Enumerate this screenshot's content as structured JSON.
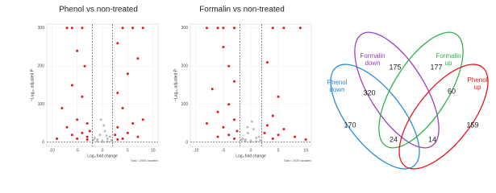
{
  "chart_data": [
    {
      "type": "scatter",
      "title": "Phenol vs non-treated",
      "xlabel": "Log₂ fold change",
      "ylabel": "−Log₁₀ adjusted P",
      "note": "Total = 2939 variables",
      "xlim": [
        -11,
        11
      ],
      "ylim": [
        -10,
        310
      ],
      "xticks": [
        -10,
        -5,
        0,
        5,
        10
      ],
      "yticks": [
        0,
        100,
        200,
        300
      ],
      "grid": true,
      "vlines": [
        -2,
        2
      ],
      "hline": 1.3,
      "series": [
        {
          "color": "#bdbdbd",
          "x": [
            0,
            1,
            -1,
            0.5,
            -0.5,
            1.5,
            -1.5,
            0,
            1,
            -1,
            0.3,
            -0.3,
            1.8,
            -1.8,
            0.8
          ],
          "values": [
            5,
            10,
            8,
            30,
            20,
            15,
            12,
            2,
            3,
            4,
            45,
            60,
            6,
            7,
            18
          ]
        },
        {
          "color": "#e31a1c",
          "x": [
            -7,
            -6,
            -4,
            4,
            6,
            8,
            -5,
            -3.5,
            3,
            7,
            -6,
            5,
            -4,
            3,
            -8,
            4,
            -5,
            -3,
            -7,
            -2.5,
            3,
            6,
            -4,
            -6,
            -3,
            2.5,
            4,
            -9,
            7,
            5,
            -5,
            -3,
            3,
            8
          ],
          "values": [
            300,
            300,
            300,
            300,
            300,
            300,
            240,
            200,
            260,
            220,
            150,
            180,
            120,
            130,
            90,
            90,
            60,
            50,
            40,
            30,
            40,
            50,
            25,
            20,
            15,
            20,
            10,
            10,
            15,
            25,
            10,
            8,
            8,
            60
          ]
        }
      ]
    },
    {
      "type": "scatter",
      "title": "Formalin vs non-treated",
      "xlabel": "Log₂ fold change",
      "ylabel": "−Log₁₀ adjusted P",
      "note": "Total = 2939 variables",
      "xlim": [
        -11,
        11
      ],
      "ylim": [
        -10,
        310
      ],
      "xticks": [
        -10,
        -5,
        0,
        5,
        10
      ],
      "yticks": [
        0,
        100,
        200,
        300
      ],
      "grid": true,
      "vlines": [
        -2,
        2
      ],
      "hline": 1.3,
      "series": [
        {
          "color": "#bdbdbd",
          "x": [
            0,
            1,
            -1,
            0.5,
            -0.5,
            1.5,
            -1.5,
            0,
            1,
            -1,
            0.2,
            -0.6,
            1.7,
            -1.7
          ],
          "values": [
            5,
            12,
            8,
            35,
            25,
            15,
            10,
            2,
            3,
            4,
            55,
            40,
            6,
            7
          ]
        },
        {
          "color": "#e31a1c",
          "x": [
            -8,
            -6,
            -5,
            -3,
            4,
            6,
            9,
            -5,
            -4,
            3,
            -7,
            -3,
            5,
            -4,
            -6,
            4,
            -3,
            -8,
            -5,
            3,
            6,
            -2.5,
            2.5,
            -4,
            -6,
            5,
            8,
            -3,
            4,
            10
          ],
          "values": [
            300,
            300,
            300,
            300,
            300,
            300,
            300,
            250,
            200,
            210,
            140,
            160,
            120,
            100,
            80,
            70,
            60,
            50,
            40,
            45,
            35,
            30,
            25,
            20,
            15,
            20,
            15,
            10,
            10,
            8
          ]
        }
      ]
    },
    {
      "type": "venn",
      "sets": [
        {
          "lines": [
            "Phenol",
            "down"
          ],
          "color": "#2b8cd8"
        },
        {
          "lines": [
            "Formalin",
            "down"
          ],
          "color": "#9b3fc4"
        },
        {
          "lines": [
            "Formalin",
            "up"
          ],
          "color": "#2fb34a"
        },
        {
          "lines": [
            "Phenol",
            "up"
          ],
          "color": "#e31a1c"
        }
      ],
      "regions": [
        175,
        177,
        320,
        60,
        170,
        159,
        24,
        14
      ]
    }
  ]
}
